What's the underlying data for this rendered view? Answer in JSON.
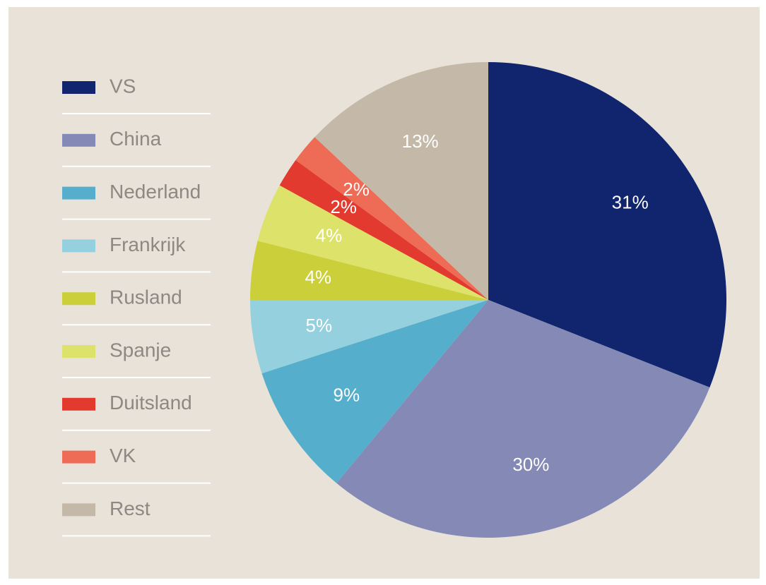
{
  "chart_data": {
    "type": "pie",
    "categories": [
      "VS",
      "China",
      "Nederland",
      "Frankrijk",
      "Rusland",
      "Spanje",
      "Duitsland",
      "VK",
      "Rest"
    ],
    "values": [
      31,
      30,
      9,
      5,
      4,
      4,
      2,
      2,
      13
    ],
    "value_labels": [
      "31%",
      "30%",
      "9%",
      "5%",
      "4%",
      "4%",
      "2%",
      "2%",
      "13%"
    ],
    "colors": [
      "#10256e",
      "#8589b5",
      "#55aecb",
      "#94d0de",
      "#cbd03a",
      "#dde36a",
      "#e23a2e",
      "#ee6b55",
      "#c4b9a8"
    ],
    "legend": "left"
  }
}
